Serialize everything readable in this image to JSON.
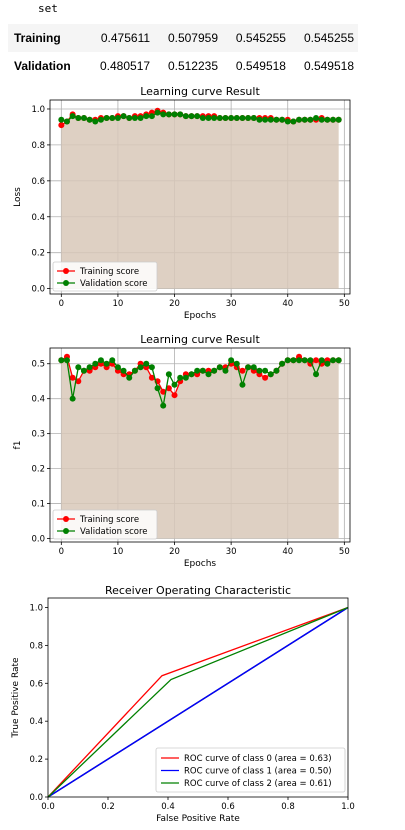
{
  "table": {
    "caption": "set",
    "rows": [
      {
        "label": "Training",
        "values": [
          "0.475611",
          "0.507959",
          "0.545255",
          "0.545255"
        ]
      },
      {
        "label": "Validation",
        "values": [
          "0.480517",
          "0.512235",
          "0.549518",
          "0.549518"
        ]
      }
    ]
  },
  "colors": {
    "training": "#ff0000",
    "validation": "#008000",
    "fill": "#d8c8b8",
    "roc0": "#ff0000",
    "roc1": "#0000ff",
    "roc2": "#008000",
    "diag": "#000080"
  },
  "chart_data": [
    {
      "type": "line",
      "title": "Learning curve Result",
      "xlabel": "Epochs",
      "ylabel": "Loss",
      "xlim": [
        -2,
        51
      ],
      "ylim": [
        -0.03,
        1.05
      ],
      "xticks": [
        0,
        10,
        20,
        30,
        40,
        50
      ],
      "yticks": [
        0.0,
        0.2,
        0.4,
        0.6,
        0.8,
        1.0
      ],
      "ytick_labels": [
        "0.0",
        "0.2",
        "0.4",
        "0.6",
        "0.8",
        "1.0"
      ],
      "grid": true,
      "legend_position": "lower-left",
      "x": [
        0,
        1,
        2,
        3,
        4,
        5,
        6,
        7,
        8,
        9,
        10,
        11,
        12,
        13,
        14,
        15,
        16,
        17,
        18,
        19,
        20,
        21,
        22,
        23,
        24,
        25,
        26,
        27,
        28,
        29,
        30,
        31,
        32,
        33,
        34,
        35,
        36,
        37,
        38,
        39,
        40,
        41,
        42,
        43,
        44,
        45,
        46,
        47,
        48,
        49
      ],
      "series": [
        {
          "name": "Training score",
          "color": "#ff0000",
          "values": [
            0.91,
            0.93,
            0.97,
            0.95,
            0.95,
            0.94,
            0.94,
            0.95,
            0.95,
            0.95,
            0.96,
            0.96,
            0.95,
            0.96,
            0.96,
            0.97,
            0.98,
            0.99,
            0.98,
            0.97,
            0.97,
            0.97,
            0.96,
            0.96,
            0.96,
            0.96,
            0.96,
            0.96,
            0.95,
            0.95,
            0.95,
            0.95,
            0.95,
            0.95,
            0.95,
            0.95,
            0.95,
            0.95,
            0.94,
            0.94,
            0.94,
            0.93,
            0.94,
            0.94,
            0.94,
            0.94,
            0.95,
            0.94,
            0.94,
            0.94
          ]
        },
        {
          "name": "Validation score",
          "color": "#008000",
          "values": [
            0.94,
            0.93,
            0.96,
            0.95,
            0.95,
            0.94,
            0.93,
            0.94,
            0.95,
            0.95,
            0.95,
            0.96,
            0.95,
            0.95,
            0.95,
            0.96,
            0.96,
            0.98,
            0.97,
            0.97,
            0.97,
            0.97,
            0.96,
            0.96,
            0.96,
            0.95,
            0.95,
            0.95,
            0.95,
            0.95,
            0.95,
            0.95,
            0.95,
            0.95,
            0.95,
            0.94,
            0.94,
            0.94,
            0.94,
            0.94,
            0.93,
            0.93,
            0.94,
            0.94,
            0.94,
            0.95,
            0.94,
            0.94,
            0.94,
            0.94
          ]
        }
      ]
    },
    {
      "type": "line",
      "title": "Learning curve Result",
      "xlabel": "Epochs",
      "ylabel": "f1",
      "xlim": [
        -2,
        51
      ],
      "ylim": [
        -0.01,
        0.545
      ],
      "xticks": [
        0,
        10,
        20,
        30,
        40,
        50
      ],
      "yticks": [
        0.0,
        0.1,
        0.2,
        0.3,
        0.4,
        0.5
      ],
      "ytick_labels": [
        "0.0",
        "0.1",
        "0.2",
        "0.3",
        "0.4",
        "0.5"
      ],
      "grid": true,
      "legend_position": "lower-left",
      "x": [
        0,
        1,
        2,
        3,
        4,
        5,
        6,
        7,
        8,
        9,
        10,
        11,
        12,
        13,
        14,
        15,
        16,
        17,
        18,
        19,
        20,
        21,
        22,
        23,
        24,
        25,
        26,
        27,
        28,
        29,
        30,
        31,
        32,
        33,
        34,
        35,
        36,
        37,
        38,
        39,
        40,
        41,
        42,
        43,
        44,
        45,
        46,
        47,
        48,
        49
      ],
      "series": [
        {
          "name": "Training score",
          "color": "#ff0000",
          "values": [
            0.51,
            0.52,
            0.46,
            0.45,
            0.48,
            0.48,
            0.49,
            0.5,
            0.49,
            0.5,
            0.48,
            0.47,
            0.47,
            0.48,
            0.5,
            0.49,
            0.46,
            0.45,
            0.42,
            0.43,
            0.41,
            0.45,
            0.47,
            0.47,
            0.47,
            0.48,
            0.48,
            0.48,
            0.49,
            0.49,
            0.5,
            0.49,
            0.48,
            0.49,
            0.48,
            0.47,
            0.46,
            0.47,
            0.48,
            0.5,
            0.51,
            0.51,
            0.52,
            0.51,
            0.5,
            0.51,
            0.5,
            0.51,
            0.51,
            0.51
          ]
        },
        {
          "name": "Validation score",
          "color": "#008000",
          "values": [
            0.51,
            0.51,
            0.4,
            0.49,
            0.48,
            0.49,
            0.5,
            0.51,
            0.5,
            0.51,
            0.49,
            0.48,
            0.46,
            0.48,
            0.49,
            0.5,
            0.49,
            0.43,
            0.38,
            0.47,
            0.44,
            0.46,
            0.46,
            0.47,
            0.48,
            0.48,
            0.47,
            0.48,
            0.49,
            0.48,
            0.51,
            0.5,
            0.44,
            0.49,
            0.49,
            0.48,
            0.48,
            0.47,
            0.48,
            0.5,
            0.51,
            0.51,
            0.51,
            0.51,
            0.51,
            0.47,
            0.51,
            0.5,
            0.51,
            0.51
          ]
        }
      ]
    },
    {
      "type": "line",
      "title": "Receiver Operating Characteristic",
      "xlabel": "False Positive Rate",
      "ylabel": "True Positive Rate",
      "xlim": [
        0.0,
        1.0
      ],
      "ylim": [
        0.0,
        1.05
      ],
      "xticks": [
        0.0,
        0.2,
        0.4,
        0.6,
        0.8,
        1.0
      ],
      "xtick_labels": [
        "0.0",
        "0.2",
        "0.4",
        "0.6",
        "0.8",
        "1.0"
      ],
      "yticks": [
        0.0,
        0.2,
        0.4,
        0.6,
        0.8,
        1.0
      ],
      "ytick_labels": [
        "0.0",
        "0.2",
        "0.4",
        "0.6",
        "0.8",
        "1.0"
      ],
      "grid": false,
      "legend_position": "lower-right",
      "diagonal": [
        [
          0,
          0
        ],
        [
          1,
          1
        ]
      ],
      "series": [
        {
          "name": "ROC curve of class 0 (area = 0.63)",
          "color": "#ff0000",
          "points": [
            [
              0,
              0
            ],
            [
              0.38,
              0.64
            ],
            [
              1,
              1
            ]
          ]
        },
        {
          "name": "ROC curve of class 1 (area = 0.50)",
          "color": "#0000ff",
          "points": [
            [
              0,
              0
            ],
            [
              1,
              1
            ]
          ]
        },
        {
          "name": "ROC curve of class 2 (area = 0.61)",
          "color": "#008000",
          "points": [
            [
              0,
              0
            ],
            [
              0.41,
              0.62
            ],
            [
              1,
              1
            ]
          ]
        }
      ]
    }
  ]
}
